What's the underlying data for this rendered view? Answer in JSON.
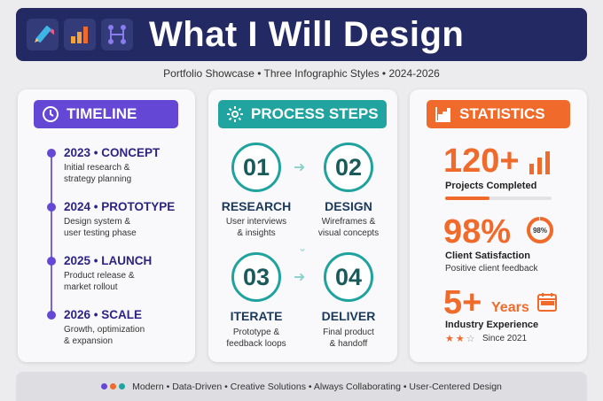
{
  "header": {
    "title": "What I Will Design",
    "icons": [
      "pencil-icon",
      "bar-chart-icon",
      "network-icon"
    ],
    "background": "#232a63"
  },
  "subtitle": "Portfolio Showcase • Three Infographic Styles • 2024-2026",
  "timeline": {
    "label": "TIMELINE",
    "icon": "clock-icon",
    "accent": "#6547d6",
    "items": [
      {
        "heading": "2023 • CONCEPT",
        "line1": "Initial research &",
        "line2": "strategy planning"
      },
      {
        "heading": "2024 • PROTOTYPE",
        "line1": "Design system &",
        "line2": "user testing phase"
      },
      {
        "heading": "2025 • LAUNCH",
        "line1": "Product release &",
        "line2": "market rollout"
      },
      {
        "heading": "2026 • SCALE",
        "line1": "Growth, optimization",
        "line2": "& expansion"
      }
    ]
  },
  "process": {
    "label": "PROCESS STEPS",
    "icon": "gear-icon",
    "accent": "#21a49f",
    "steps": [
      {
        "num": "01",
        "title": "RESEARCH",
        "line1": "User interviews",
        "line2": "& insights"
      },
      {
        "num": "02",
        "title": "DESIGN",
        "line1": "Wireframes &",
        "line2": "visual concepts"
      },
      {
        "num": "03",
        "title": "ITERATE",
        "line1": "Prototype &",
        "line2": "feedback loops"
      },
      {
        "num": "04",
        "title": "DELIVER",
        "line1": "Final product",
        "line2": "& handoff"
      }
    ]
  },
  "stats": {
    "label": "STATISTICS",
    "icon": "chart-icon",
    "accent": "#f06b2b",
    "projects": {
      "value": "120+",
      "label": "Projects Completed",
      "bar_fraction": 0.42
    },
    "satisfaction": {
      "value": "98%",
      "ring_label": "98%",
      "ring_fraction": 0.98,
      "label": "Client Satisfaction",
      "sub": "Positive client feedback"
    },
    "experience": {
      "value": "5+",
      "unit": "Years",
      "label": "Industry Experience",
      "since": "Since 2021",
      "stars_filled": 2,
      "stars_total": 3
    }
  },
  "footer": {
    "text": "Modern • Data-Driven • Creative Solutions • Always Collaborating • User-Centered Design",
    "dot_colors": [
      "#6547d6",
      "#f06b2b",
      "#21a49f"
    ]
  }
}
